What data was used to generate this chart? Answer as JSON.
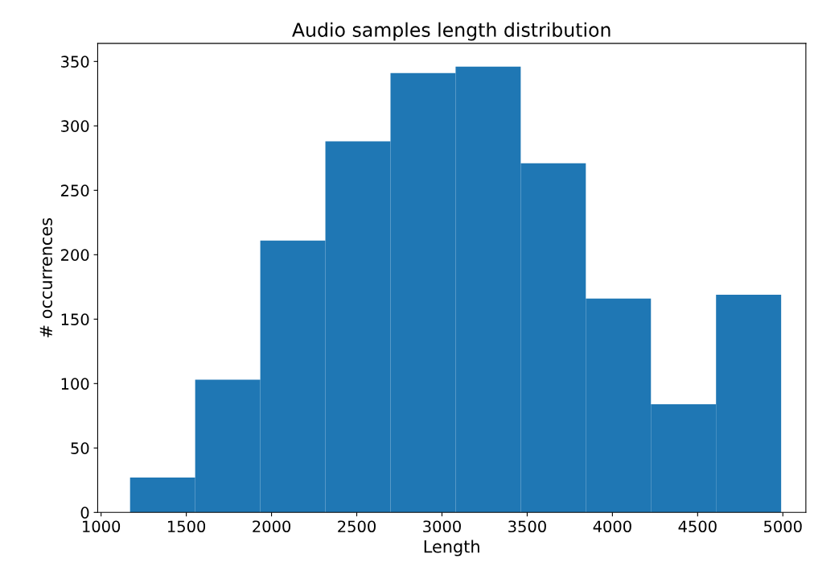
{
  "chart_data": {
    "type": "histogram",
    "title": "Audio samples length distribution",
    "xlabel": "Length",
    "ylabel": "# occurrences",
    "bins": [
      1170,
      1552,
      1934,
      2316,
      2698,
      3080,
      3462,
      3844,
      4226,
      4608,
      4990
    ],
    "values": [
      27,
      103,
      211,
      288,
      341,
      346,
      271,
      166,
      84,
      169
    ],
    "color": "#1f77b4",
    "xlim": [
      980,
      5135
    ],
    "xticks": [
      1000,
      1500,
      2000,
      2500,
      3000,
      3500,
      4000,
      4500,
      5000
    ],
    "ylim": [
      0,
      364
    ],
    "yticks": [
      0,
      50,
      100,
      150,
      200,
      250,
      300,
      350
    ],
    "grid": false
  }
}
